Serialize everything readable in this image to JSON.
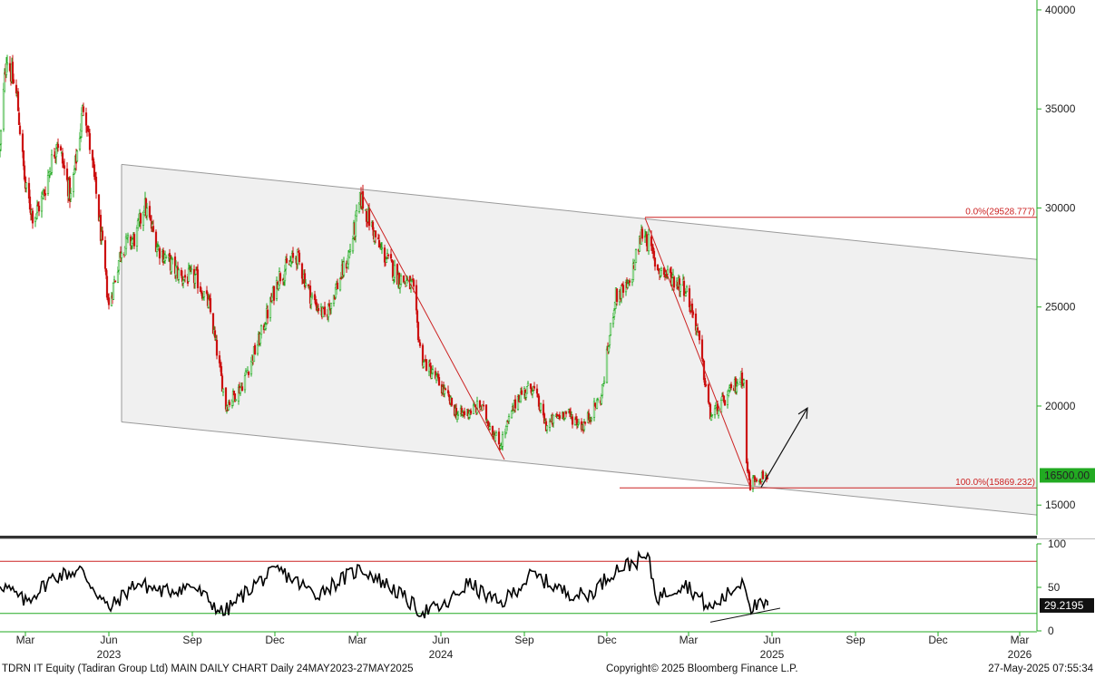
{
  "colors": {
    "up": "#22aa22",
    "down": "#cc1111",
    "channel_fill": "#f0f0f0",
    "channel_line": "#9a9a9a",
    "fib": "#cc2222",
    "axis": "#22aa22",
    "rsi_line": "#000000",
    "rsi_upper": "#cc2222",
    "rsi_lower": "#22aa22"
  },
  "footer": {
    "left": "TDRN IT Equity (Tadiran Group Ltd) MAIN DAILY CHART  Daily 24MAY2023-27MAY2025",
    "center": "Copyright© 2025 Bloomberg Finance L.P.",
    "right": "27-May-2025 07:55:34"
  },
  "chart_data": [
    {
      "type": "candlestick",
      "ylim": [
        13500,
        40500
      ],
      "yticks": [
        15000,
        20000,
        25000,
        30000,
        35000,
        40000
      ],
      "xlim": [
        "2023-02-01",
        "2026-03-20"
      ],
      "x_ticks": [
        {
          "date": "2023-03-01",
          "label": "Mar"
        },
        {
          "date": "2023-06-01",
          "label": "Jun"
        },
        {
          "date": "2023-09-01",
          "label": "Sep"
        },
        {
          "date": "2023-12-01",
          "label": "Dec"
        },
        {
          "date": "2024-03-01",
          "label": "Mar"
        },
        {
          "date": "2024-06-01",
          "label": "Jun"
        },
        {
          "date": "2024-09-01",
          "label": "Sep"
        },
        {
          "date": "2024-12-01",
          "label": "Dec"
        },
        {
          "date": "2025-03-01",
          "label": "Mar"
        },
        {
          "date": "2025-06-01",
          "label": "Jun"
        },
        {
          "date": "2025-09-01",
          "label": "Sep"
        },
        {
          "date": "2025-12-01",
          "label": "Dec"
        },
        {
          "date": "2026-03-01",
          "label": "Mar"
        }
      ],
      "year_labels": [
        {
          "date": "2023-06-01",
          "label": "2023"
        },
        {
          "date": "2024-06-01",
          "label": "2024"
        },
        {
          "date": "2025-06-01",
          "label": "2025"
        },
        {
          "date": "2026-03-01",
          "label": "2026"
        }
      ],
      "price_keypoints": [
        [
          "2023-02-01",
          33000
        ],
        [
          "2023-02-08",
          37800
        ],
        [
          "2023-02-20",
          35500
        ],
        [
          "2023-03-01",
          31000
        ],
        [
          "2023-03-10",
          29500
        ],
        [
          "2023-03-20",
          30500
        ],
        [
          "2023-04-05",
          33500
        ],
        [
          "2023-04-20",
          30500
        ],
        [
          "2023-05-05",
          35500
        ],
        [
          "2023-05-10",
          33500
        ],
        [
          "2023-05-20",
          30000
        ],
        [
          "2023-06-01",
          25000
        ],
        [
          "2023-06-15",
          28000
        ],
        [
          "2023-07-01",
          28500
        ],
        [
          "2023-07-10",
          30200
        ],
        [
          "2023-07-25",
          28000
        ],
        [
          "2023-08-20",
          26500
        ],
        [
          "2023-09-05",
          26500
        ],
        [
          "2023-09-20",
          25000
        ],
        [
          "2023-10-08",
          20000
        ],
        [
          "2023-10-25",
          21000
        ],
        [
          "2023-11-15",
          23500
        ],
        [
          "2023-12-05",
          26500
        ],
        [
          "2023-12-25",
          27600
        ],
        [
          "2024-01-10",
          25500
        ],
        [
          "2024-01-25",
          24500
        ],
        [
          "2024-02-20",
          27500
        ],
        [
          "2024-03-05",
          30500
        ],
        [
          "2024-03-25",
          28000
        ],
        [
          "2024-04-15",
          26500
        ],
        [
          "2024-05-01",
          26000
        ],
        [
          "2024-05-10",
          22500
        ],
        [
          "2024-06-01",
          21000
        ],
        [
          "2024-06-20",
          19500
        ],
        [
          "2024-07-15",
          20000
        ],
        [
          "2024-08-05",
          18000
        ],
        [
          "2024-08-25",
          20500
        ],
        [
          "2024-09-10",
          21000
        ],
        [
          "2024-09-25",
          19000
        ],
        [
          "2024-10-15",
          19700
        ],
        [
          "2024-11-05",
          19000
        ],
        [
          "2024-11-25",
          20500
        ],
        [
          "2024-12-10",
          25500
        ],
        [
          "2024-12-25",
          26000
        ],
        [
          "2025-01-10",
          29000
        ],
        [
          "2025-01-25",
          27000
        ],
        [
          "2025-02-10",
          26500
        ],
        [
          "2025-02-25",
          26000
        ],
        [
          "2025-03-10",
          24000
        ],
        [
          "2025-03-25",
          19500
        ],
        [
          "2025-04-10",
          20300
        ],
        [
          "2025-04-25",
          21300
        ],
        [
          "2025-05-01",
          21500
        ],
        [
          "2025-05-04",
          17000
        ],
        [
          "2025-05-08",
          16000
        ],
        [
          "2025-05-14",
          16400
        ],
        [
          "2025-05-27",
          16500
        ]
      ],
      "channel": {
        "upper": [
          [
            "2023-06-15",
            32200
          ],
          [
            "2026-03-20",
            27400
          ]
        ],
        "lower": [
          [
            "2023-06-15",
            19200
          ],
          [
            "2026-03-20",
            14500
          ]
        ]
      },
      "trendlines": [
        [
          [
            "2024-03-05",
            30800
          ],
          [
            "2024-08-10",
            17300
          ]
        ],
        [
          [
            "2025-01-12",
            29500
          ],
          [
            "2025-05-08",
            15900
          ]
        ]
      ],
      "arrow": [
        [
          "2025-05-20",
          15900
        ],
        [
          "2025-07-10",
          19900
        ]
      ],
      "fib_levels": [
        {
          "label": "0.0%(29528.777)",
          "value": 29528.777,
          "start": "2025-01-12"
        },
        {
          "label": "100.0%(15869.232)",
          "value": 15869.232,
          "start": "2024-12-15"
        }
      ],
      "last_price": {
        "value": 16500,
        "label": "16500.00"
      }
    },
    {
      "type": "line",
      "series_note": "RSI",
      "ylim": [
        0,
        100
      ],
      "yticks": [
        0,
        50,
        100
      ],
      "upper_line": 80,
      "lower_line": 20,
      "rsi_keypoints": [
        [
          "2023-02-01",
          55
        ],
        [
          "2023-03-01",
          33
        ],
        [
          "2023-04-01",
          62
        ],
        [
          "2023-05-01",
          70
        ],
        [
          "2023-06-01",
          25
        ],
        [
          "2023-07-01",
          55
        ],
        [
          "2023-08-01",
          45
        ],
        [
          "2023-09-01",
          52
        ],
        [
          "2023-10-05",
          20
        ],
        [
          "2023-11-10",
          55
        ],
        [
          "2023-12-05",
          70
        ],
        [
          "2024-01-15",
          42
        ],
        [
          "2024-03-05",
          72
        ],
        [
          "2024-04-10",
          48
        ],
        [
          "2024-05-10",
          22
        ],
        [
          "2024-06-05",
          28
        ],
        [
          "2024-07-01",
          55
        ],
        [
          "2024-08-05",
          30
        ],
        [
          "2024-09-10",
          65
        ],
        [
          "2024-10-15",
          45
        ],
        [
          "2024-11-10",
          40
        ],
        [
          "2024-12-10",
          70
        ],
        [
          "2025-01-15",
          85
        ],
        [
          "2025-01-25",
          38
        ],
        [
          "2025-02-25",
          55
        ],
        [
          "2025-03-25",
          25
        ],
        [
          "2025-04-20",
          48
        ],
        [
          "2025-05-01",
          60
        ],
        [
          "2025-05-08",
          28
        ],
        [
          "2025-05-27",
          29.2195
        ]
      ],
      "divergence_line": [
        [
          "2025-03-25",
          10
        ],
        [
          "2025-06-10",
          26
        ]
      ],
      "last_value": {
        "value": 29.2195,
        "label": "29.2195"
      }
    }
  ]
}
